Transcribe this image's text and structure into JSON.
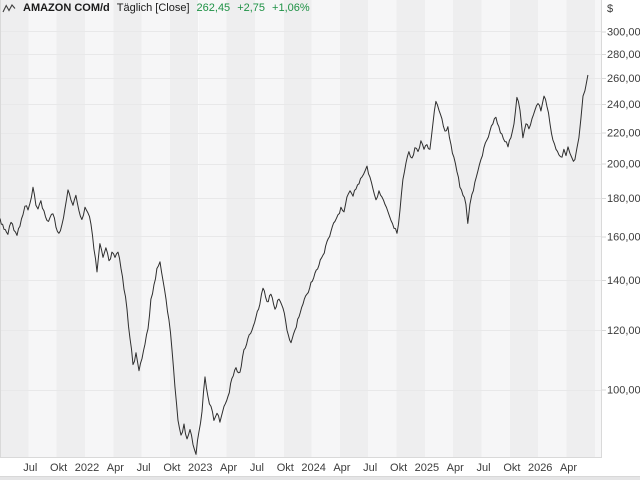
{
  "header": {
    "symbol": "AMAZON COM/d",
    "timeframe": "Täglich [Close]",
    "last_price": "262,45",
    "change_abs": "+2,75",
    "change_pct": "+1,06%"
  },
  "colors": {
    "up_green": "#1e9145",
    "line": "#2e2e2e",
    "grid": "#e8e8e9",
    "border": "#d9d9d9",
    "axis_text": "#3c3c3c",
    "band_light": "#f6f6f7",
    "band_dark": "#eeeeef"
  },
  "chart_data": {
    "type": "line",
    "title": "AMAZON COM/d Täglich [Close]",
    "currency_label": "$",
    "y_scale": "log",
    "grid": true,
    "quarter_bands_shaded": "Apr-Jun and Okt-Dez",
    "ylim": [
      81.1,
      330.3
    ],
    "xlim": [
      2021.206,
      2026.519
    ],
    "y_ticks": [
      300,
      280,
      260,
      240,
      220,
      200,
      180,
      160,
      140,
      120,
      100
    ],
    "y_tick_labels": [
      "300,00",
      "280,00",
      "260,00",
      "240,00",
      "220,00",
      "200,00",
      "180,00",
      "160,00",
      "140,00",
      "120,00",
      "100,00"
    ],
    "x_ticks": [
      {
        "t": 2021.5,
        "label": "Jul"
      },
      {
        "t": 2021.75,
        "label": "Okt"
      },
      {
        "t": 2022.0,
        "label": "2022"
      },
      {
        "t": 2022.25,
        "label": "Apr"
      },
      {
        "t": 2022.5,
        "label": "Jul"
      },
      {
        "t": 2022.75,
        "label": "Okt"
      },
      {
        "t": 2023.0,
        "label": "2023"
      },
      {
        "t": 2023.25,
        "label": "Apr"
      },
      {
        "t": 2023.5,
        "label": "Jul"
      },
      {
        "t": 2023.75,
        "label": "Okt"
      },
      {
        "t": 2024.0,
        "label": "2024"
      },
      {
        "t": 2024.25,
        "label": "Apr"
      },
      {
        "t": 2024.5,
        "label": "Jul"
      },
      {
        "t": 2024.75,
        "label": "Okt"
      },
      {
        "t": 2025.0,
        "label": "2025"
      },
      {
        "t": 2025.25,
        "label": "Apr"
      },
      {
        "t": 2025.5,
        "label": "Jul"
      },
      {
        "t": 2025.75,
        "label": "Okt"
      },
      {
        "t": 2026.0,
        "label": "2026"
      },
      {
        "t": 2026.25,
        "label": "Apr"
      }
    ],
    "series": [
      {
        "name": "AMAZON COM Close ($)",
        "points": [
          [
            2021.206,
            169
          ],
          [
            2021.241,
            163.5
          ],
          [
            2021.276,
            161
          ],
          [
            2021.303,
            167
          ],
          [
            2021.329,
            163
          ],
          [
            2021.356,
            160.5
          ],
          [
            2021.382,
            165
          ],
          [
            2021.409,
            171
          ],
          [
            2021.426,
            175.5
          ],
          [
            2021.453,
            173.5
          ],
          [
            2021.47,
            177
          ],
          [
            2021.497,
            186
          ],
          [
            2021.523,
            176
          ],
          [
            2021.541,
            174
          ],
          [
            2021.567,
            178.5
          ],
          [
            2021.594,
            173
          ],
          [
            2021.621,
            168
          ],
          [
            2021.647,
            169.5
          ],
          [
            2021.673,
            171.5
          ],
          [
            2021.7,
            164.5
          ],
          [
            2021.726,
            161.5
          ],
          [
            2021.753,
            166
          ],
          [
            2021.779,
            174
          ],
          [
            2021.806,
            184.5
          ],
          [
            2021.832,
            179
          ],
          [
            2021.85,
            176
          ],
          [
            2021.876,
            181.5
          ],
          [
            2021.903,
            173
          ],
          [
            2021.929,
            168.5
          ],
          [
            2021.956,
            175
          ],
          [
            2021.982,
            172
          ],
          [
            2022.009,
            166
          ],
          [
            2022.035,
            154
          ],
          [
            2022.062,
            143.5
          ],
          [
            2022.088,
            156.5
          ],
          [
            2022.115,
            150
          ],
          [
            2022.141,
            154.5
          ],
          [
            2022.168,
            148.5
          ],
          [
            2022.194,
            152.5
          ],
          [
            2022.221,
            150
          ],
          [
            2022.247,
            152.5
          ],
          [
            2022.274,
            145
          ],
          [
            2022.3,
            136
          ],
          [
            2022.327,
            128
          ],
          [
            2022.353,
            117
          ],
          [
            2022.38,
            108
          ],
          [
            2022.406,
            112
          ],
          [
            2022.433,
            106
          ],
          [
            2022.459,
            110
          ],
          [
            2022.486,
            115
          ],
          [
            2022.512,
            120.5
          ],
          [
            2022.538,
            132
          ],
          [
            2022.565,
            138
          ],
          [
            2022.591,
            145
          ],
          [
            2022.618,
            148
          ],
          [
            2022.644,
            140
          ],
          [
            2022.671,
            132
          ],
          [
            2022.697,
            124
          ],
          [
            2022.724,
            113
          ],
          [
            2022.75,
            101
          ],
          [
            2022.777,
            91
          ],
          [
            2022.803,
            87
          ],
          [
            2022.83,
            90
          ],
          [
            2022.856,
            86
          ],
          [
            2022.883,
            88.5
          ],
          [
            2022.909,
            84.5
          ],
          [
            2022.936,
            82
          ],
          [
            2022.962,
            88
          ],
          [
            2022.989,
            93.5
          ],
          [
            2023.015,
            104
          ],
          [
            2023.041,
            98
          ],
          [
            2023.068,
            95
          ],
          [
            2023.094,
            91
          ],
          [
            2023.121,
            93
          ],
          [
            2023.147,
            90.5
          ],
          [
            2023.183,
            95
          ],
          [
            2023.218,
            98
          ],
          [
            2023.253,
            103.5
          ],
          [
            2023.289,
            107
          ],
          [
            2023.324,
            105.5
          ],
          [
            2023.359,
            113
          ],
          [
            2023.394,
            117
          ],
          [
            2023.43,
            120
          ],
          [
            2023.465,
            125
          ],
          [
            2023.5,
            130
          ],
          [
            2023.527,
            136.5
          ],
          [
            2023.562,
            131
          ],
          [
            2023.597,
            134
          ],
          [
            2023.633,
            128
          ],
          [
            2023.668,
            132
          ],
          [
            2023.703,
            128.5
          ],
          [
            2023.739,
            120
          ],
          [
            2023.774,
            115.5
          ],
          [
            2023.809,
            120
          ],
          [
            2023.845,
            125
          ],
          [
            2023.88,
            130
          ],
          [
            2023.915,
            134
          ],
          [
            2023.951,
            139
          ],
          [
            2023.986,
            143
          ],
          [
            2024.021,
            146.5
          ],
          [
            2024.056,
            151
          ],
          [
            2024.092,
            157.5
          ],
          [
            2024.127,
            162.5
          ],
          [
            2024.162,
            167.5
          ],
          [
            2024.189,
            171
          ],
          [
            2024.215,
            175
          ],
          [
            2024.242,
            172.5
          ],
          [
            2024.268,
            180.5
          ],
          [
            2024.295,
            184
          ],
          [
            2024.321,
            181
          ],
          [
            2024.348,
            185
          ],
          [
            2024.374,
            188
          ],
          [
            2024.401,
            192
          ],
          [
            2024.427,
            195.5
          ],
          [
            2024.445,
            198.5
          ],
          [
            2024.471,
            192
          ],
          [
            2024.498,
            185
          ],
          [
            2024.524,
            179
          ],
          [
            2024.551,
            184
          ],
          [
            2024.577,
            180.5
          ],
          [
            2024.604,
            176.5
          ],
          [
            2024.63,
            172.5
          ],
          [
            2024.657,
            168
          ],
          [
            2024.683,
            164
          ],
          [
            2024.71,
            161.5
          ],
          [
            2024.736,
            173.5
          ],
          [
            2024.762,
            190.5
          ],
          [
            2024.789,
            200.5
          ],
          [
            2024.815,
            207.5
          ],
          [
            2024.842,
            203.5
          ],
          [
            2024.868,
            210
          ],
          [
            2024.895,
            207.5
          ],
          [
            2024.921,
            214.5
          ],
          [
            2024.948,
            209
          ],
          [
            2024.974,
            212
          ],
          [
            2025.0,
            209
          ],
          [
            2025.027,
            226
          ],
          [
            2025.053,
            242
          ],
          [
            2025.08,
            235.5
          ],
          [
            2025.106,
            229.5
          ],
          [
            2025.133,
            221
          ],
          [
            2025.159,
            224
          ],
          [
            2025.186,
            212
          ],
          [
            2025.212,
            204
          ],
          [
            2025.239,
            195
          ],
          [
            2025.265,
            186
          ],
          [
            2025.292,
            181.5
          ],
          [
            2025.318,
            176.5
          ],
          [
            2025.335,
            166.5
          ],
          [
            2025.353,
            176.5
          ],
          [
            2025.371,
            182
          ],
          [
            2025.397,
            189
          ],
          [
            2025.424,
            195.5
          ],
          [
            2025.45,
            202.5
          ],
          [
            2025.477,
            210
          ],
          [
            2025.503,
            215
          ],
          [
            2025.53,
            221
          ],
          [
            2025.556,
            226
          ],
          [
            2025.583,
            230.5
          ],
          [
            2025.609,
            224
          ],
          [
            2025.636,
            219
          ],
          [
            2025.662,
            214
          ],
          [
            2025.689,
            210.5
          ],
          [
            2025.715,
            216.5
          ],
          [
            2025.742,
            226
          ],
          [
            2025.768,
            245
          ],
          [
            2025.795,
            235.5
          ],
          [
            2025.821,
            216.5
          ],
          [
            2025.848,
            226
          ],
          [
            2025.874,
            222.5
          ],
          [
            2025.901,
            229.5
          ],
          [
            2025.927,
            235.5
          ],
          [
            2025.954,
            240.5
          ],
          [
            2025.98,
            235
          ],
          [
            2026.007,
            246
          ],
          [
            2026.033,
            238.5
          ],
          [
            2026.06,
            226
          ],
          [
            2026.086,
            215
          ],
          [
            2026.113,
            209
          ],
          [
            2026.139,
            205.5
          ],
          [
            2026.166,
            204
          ],
          [
            2026.183,
            209
          ],
          [
            2026.201,
            205
          ],
          [
            2026.219,
            210.5
          ],
          [
            2026.236,
            206.5
          ],
          [
            2026.254,
            203.5
          ],
          [
            2026.28,
            202.5
          ],
          [
            2026.298,
            210
          ],
          [
            2026.315,
            216.5
          ],
          [
            2026.333,
            229.5
          ],
          [
            2026.351,
            246
          ],
          [
            2026.368,
            250
          ],
          [
            2026.377,
            254
          ],
          [
            2026.395,
            262.45
          ]
        ]
      }
    ]
  }
}
